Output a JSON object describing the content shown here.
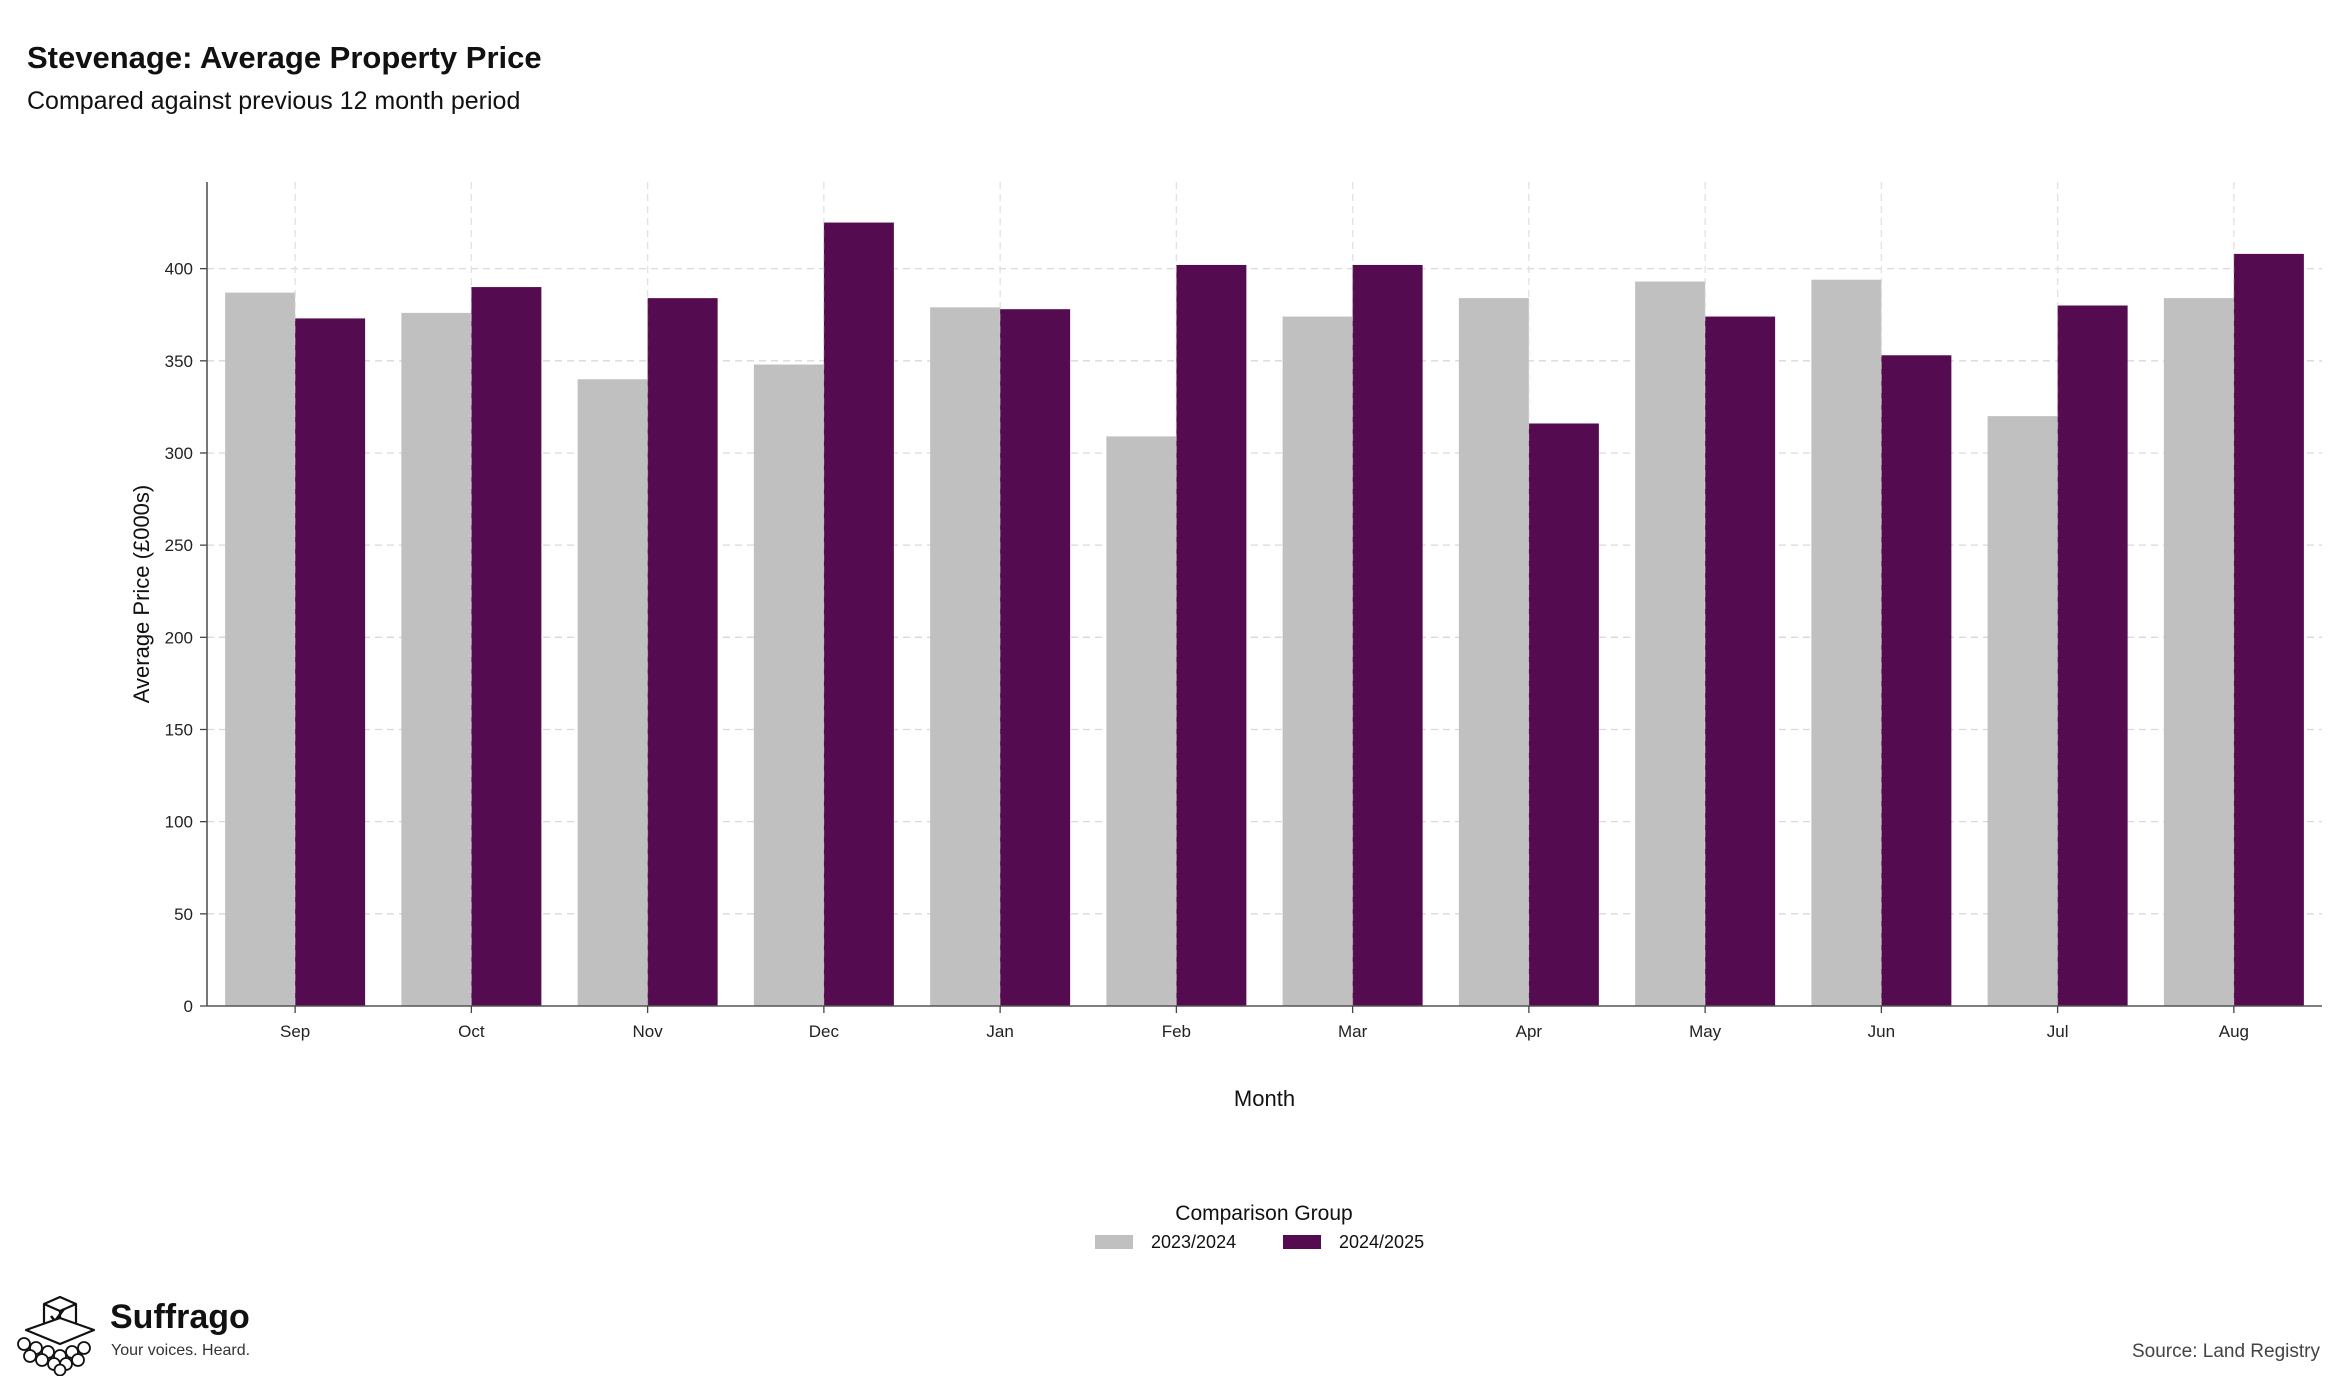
{
  "chart_data": {
    "type": "bar",
    "title": "Stevenage: Average Property Price",
    "subtitle": "Compared against previous 12 month period",
    "xlabel": "Month",
    "ylabel": "Average Price (£000s)",
    "categories": [
      "Sep",
      "Oct",
      "Nov",
      "Dec",
      "Jan",
      "Feb",
      "Mar",
      "Apr",
      "May",
      "Jun",
      "Jul",
      "Aug"
    ],
    "series": [
      {
        "name": "2023/2024",
        "color": "#c0c0c0",
        "values": [
          387,
          376,
          340,
          348,
          379,
          309,
          374,
          384,
          393,
          394,
          320,
          384
        ]
      },
      {
        "name": "2024/2025",
        "color": "#550b50",
        "values": [
          373,
          390,
          384,
          425,
          378,
          402,
          402,
          316,
          374,
          353,
          380,
          408
        ]
      }
    ],
    "ylim": [
      0,
      447
    ],
    "yticks": [
      0,
      50,
      100,
      150,
      200,
      250,
      300,
      350,
      400
    ],
    "grid": true,
    "legend": {
      "title": "Comparison Group",
      "placement": "bottom"
    }
  },
  "branding": {
    "name": "Suffrago",
    "tagline": "Your voices. Heard.",
    "logo_icon": "ballot-box-icon"
  },
  "source": "Source: Land Registry"
}
